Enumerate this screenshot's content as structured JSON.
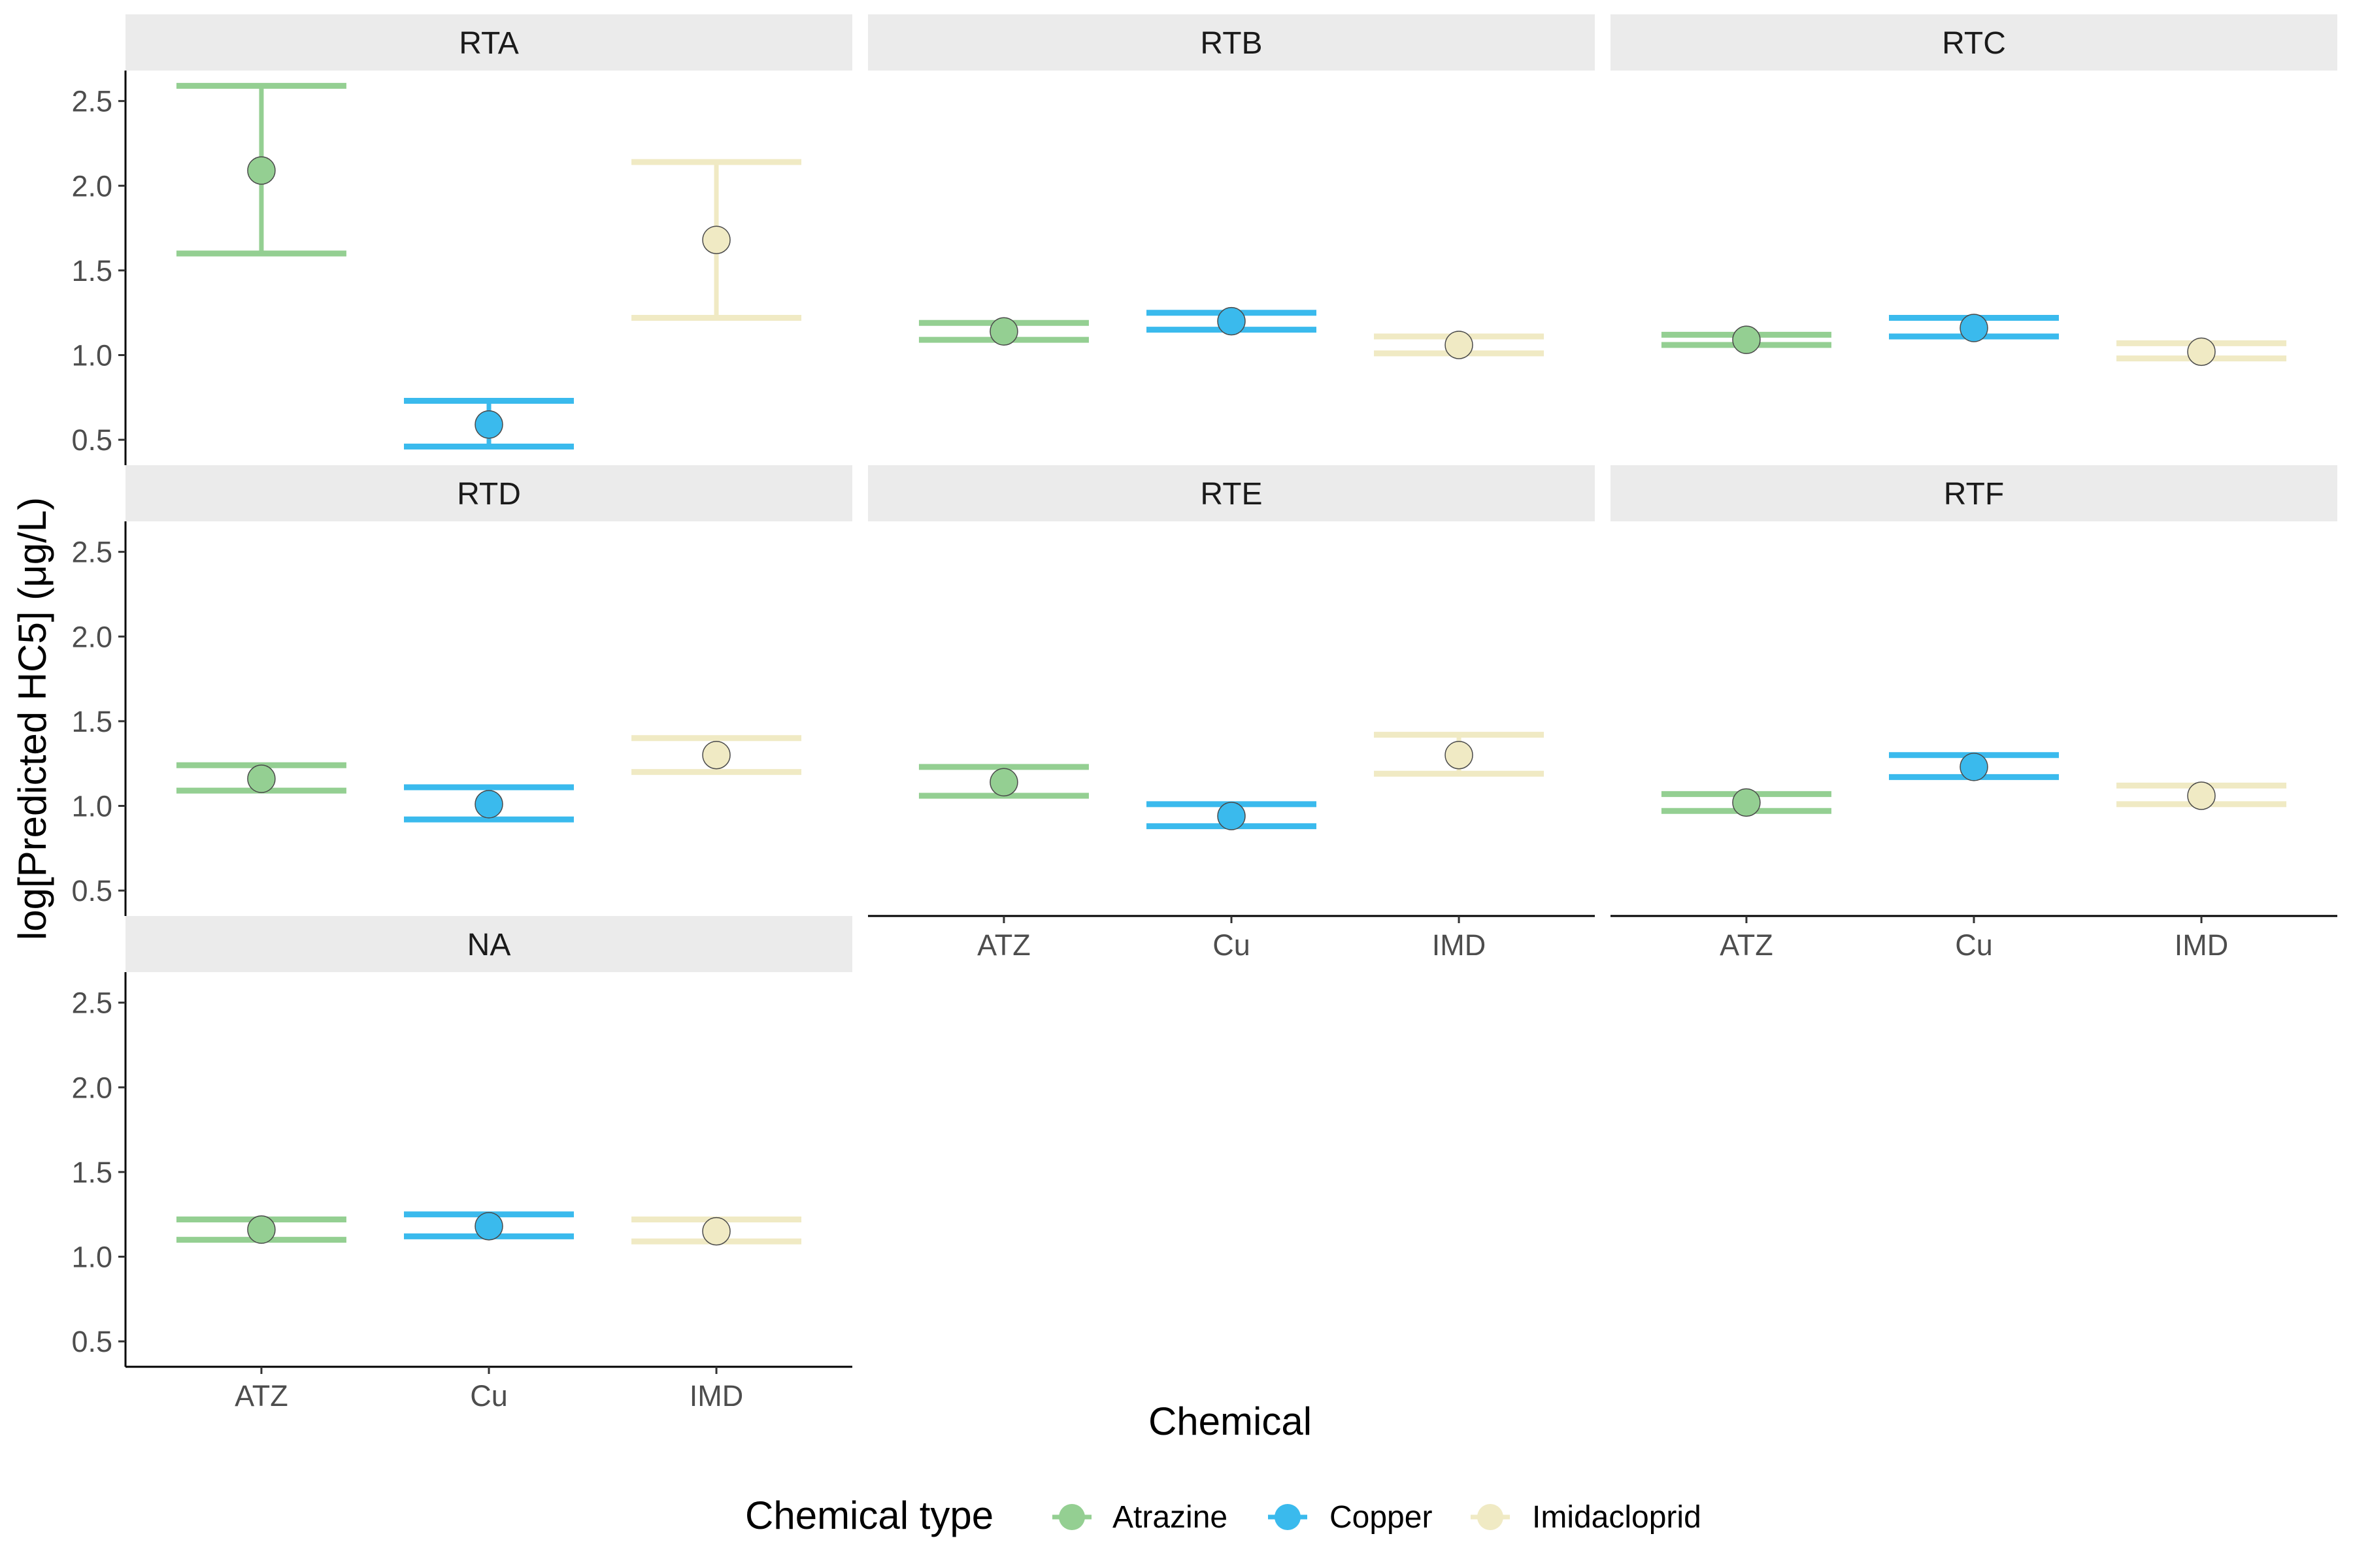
{
  "chart_data": {
    "type": "scatter",
    "subtype": "faceted point-range with error bars",
    "xlabel": "Chemical",
    "ylabel": "log[Predicted HC5] (μg/L)",
    "categories": [
      "ATZ",
      "Cu",
      "IMD"
    ],
    "ylim": [
      0.35,
      2.68
    ],
    "yticks": [
      "0.5",
      "1.0",
      "1.5",
      "2.0",
      "2.5"
    ],
    "grid": false,
    "legend": {
      "title": "Chemical type",
      "position": "bottom",
      "items": [
        {
          "label": "Atrazine",
          "color": "#94CF92"
        },
        {
          "label": "Copper",
          "color": "#3ABAED"
        },
        {
          "label": "Imidacloprid",
          "color": "#F0EAC4"
        }
      ]
    },
    "facets": [
      {
        "name": "RTA",
        "points": [
          {
            "x": "ATZ",
            "y": 2.09,
            "low": 1.6,
            "high": 2.59
          },
          {
            "x": "Cu",
            "y": 0.59,
            "low": 0.46,
            "high": 0.73
          },
          {
            "x": "IMD",
            "y": 1.68,
            "low": 1.22,
            "high": 2.14
          }
        ]
      },
      {
        "name": "RTB",
        "points": [
          {
            "x": "ATZ",
            "y": 1.14,
            "low": 1.09,
            "high": 1.19
          },
          {
            "x": "Cu",
            "y": 1.2,
            "low": 1.15,
            "high": 1.25
          },
          {
            "x": "IMD",
            "y": 1.06,
            "low": 1.01,
            "high": 1.11
          }
        ]
      },
      {
        "name": "RTC",
        "points": [
          {
            "x": "ATZ",
            "y": 1.09,
            "low": 1.06,
            "high": 1.12
          },
          {
            "x": "Cu",
            "y": 1.16,
            "low": 1.11,
            "high": 1.22
          },
          {
            "x": "IMD",
            "y": 1.02,
            "low": 0.98,
            "high": 1.07
          }
        ]
      },
      {
        "name": "RTD",
        "points": [
          {
            "x": "ATZ",
            "y": 1.16,
            "low": 1.09,
            "high": 1.24
          },
          {
            "x": "Cu",
            "y": 1.01,
            "low": 0.92,
            "high": 1.11
          },
          {
            "x": "IMD",
            "y": 1.3,
            "low": 1.2,
            "high": 1.4
          }
        ]
      },
      {
        "name": "RTE",
        "points": [
          {
            "x": "ATZ",
            "y": 1.14,
            "low": 1.06,
            "high": 1.23
          },
          {
            "x": "Cu",
            "y": 0.94,
            "low": 0.88,
            "high": 1.01
          },
          {
            "x": "IMD",
            "y": 1.3,
            "low": 1.19,
            "high": 1.42
          }
        ]
      },
      {
        "name": "RTF",
        "points": [
          {
            "x": "ATZ",
            "y": 1.02,
            "low": 0.97,
            "high": 1.07
          },
          {
            "x": "Cu",
            "y": 1.23,
            "low": 1.17,
            "high": 1.3
          },
          {
            "x": "IMD",
            "y": 1.06,
            "low": 1.01,
            "high": 1.12
          }
        ]
      },
      {
        "name": "NA",
        "points": [
          {
            "x": "ATZ",
            "y": 1.16,
            "low": 1.1,
            "high": 1.22
          },
          {
            "x": "Cu",
            "y": 1.18,
            "low": 1.12,
            "high": 1.25
          },
          {
            "x": "IMD",
            "y": 1.15,
            "low": 1.09,
            "high": 1.22
          }
        ]
      }
    ]
  }
}
